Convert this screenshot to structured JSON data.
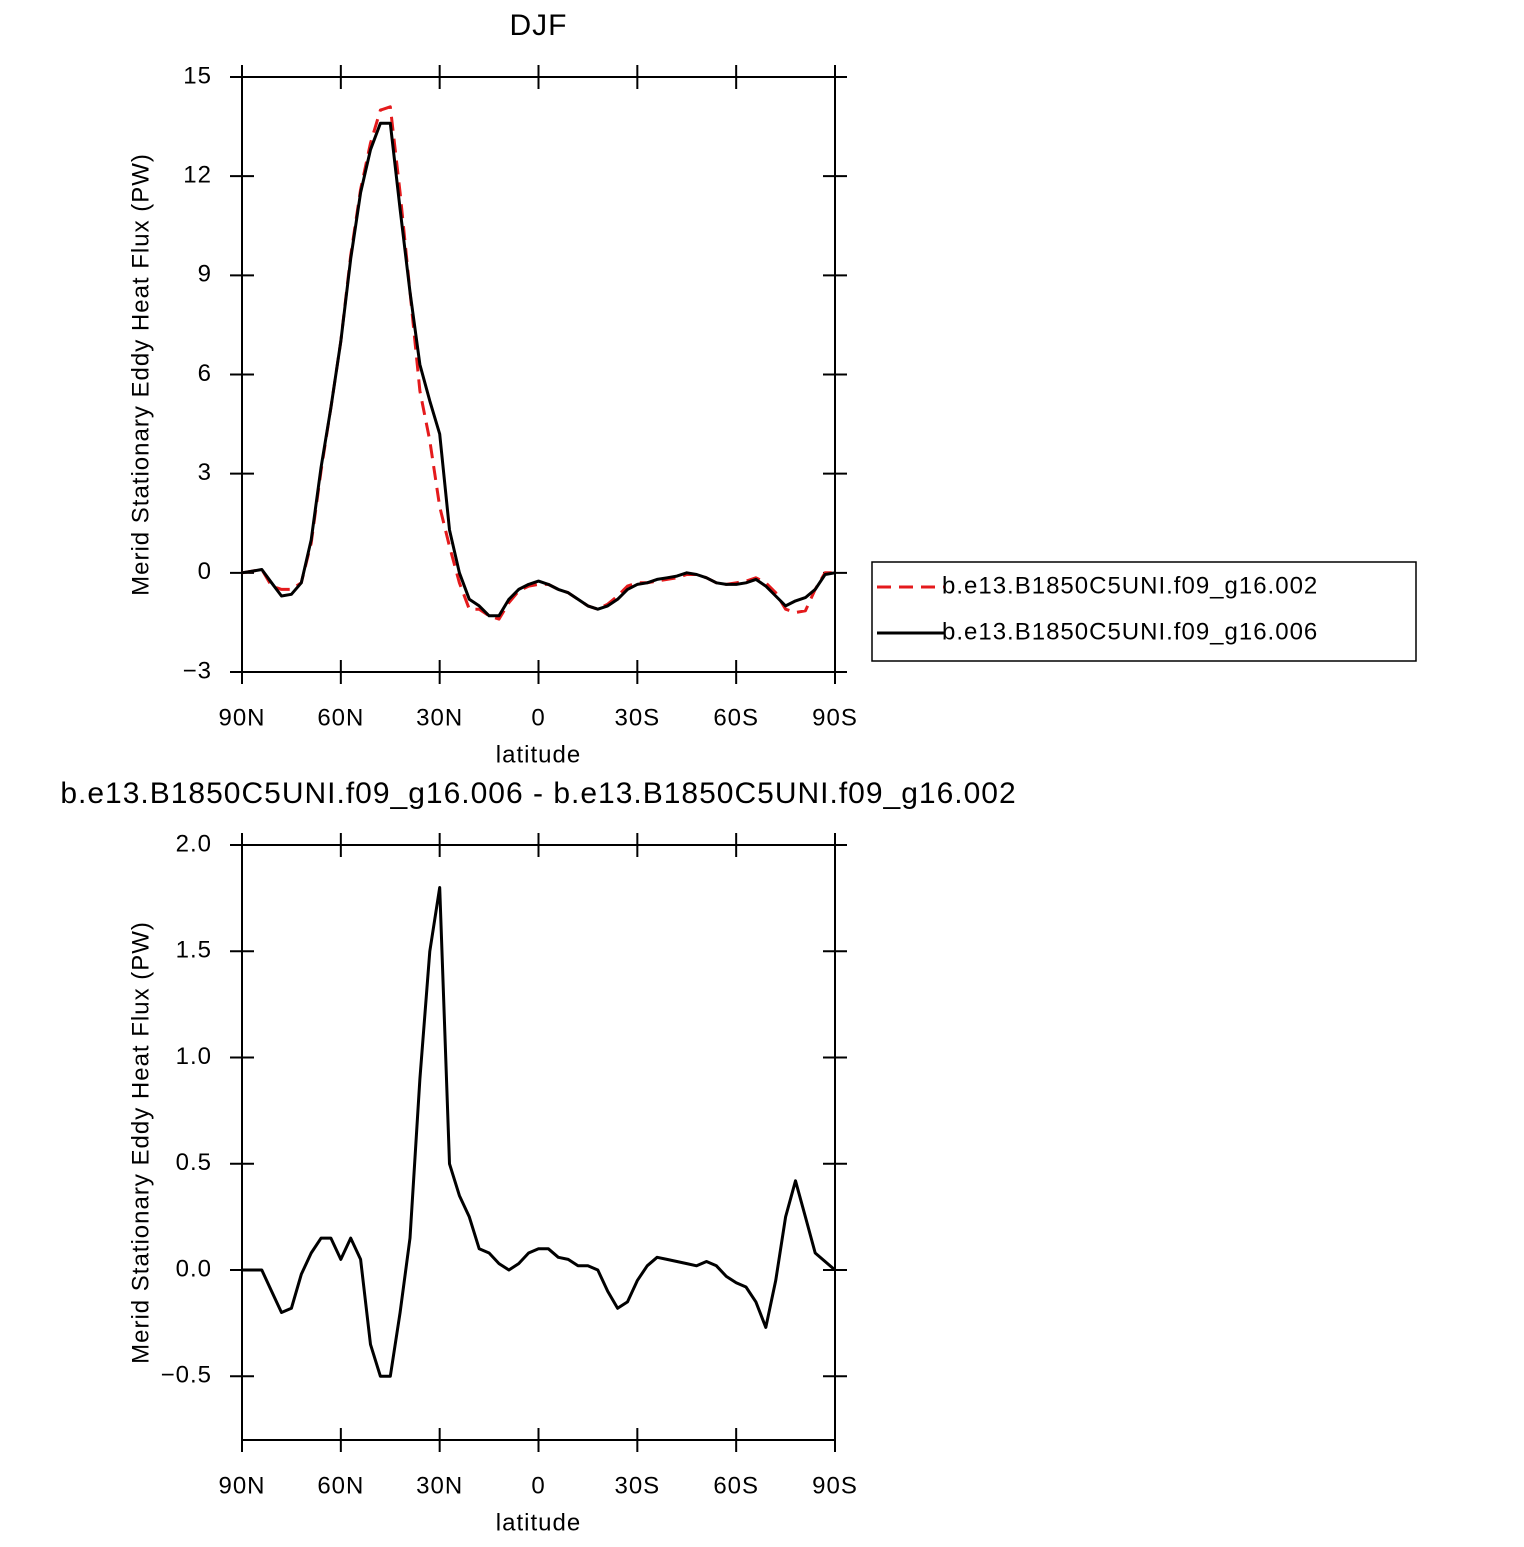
{
  "chart_data": [
    {
      "type": "line",
      "title": "DJF",
      "xlabel": "latitude",
      "ylabel": "Merid Stationary Eddy Heat Flux (PW)",
      "x": [
        90,
        87,
        84,
        81,
        78,
        75,
        72,
        69,
        66,
        63,
        60,
        57,
        54,
        51,
        48,
        45,
        42,
        39,
        36,
        33,
        30,
        27,
        24,
        21,
        18,
        15,
        12,
        9,
        6,
        3,
        0,
        -3,
        -6,
        -9,
        -12,
        -15,
        -18,
        -21,
        -24,
        -27,
        -30,
        -33,
        -36,
        -39,
        -42,
        -45,
        -48,
        -51,
        -54,
        -57,
        -60,
        -63,
        -66,
        -69,
        -72,
        -75,
        -78,
        -81,
        -84,
        -87,
        -90
      ],
      "series": [
        {
          "name": "b.e13.B1850C5UNI.f09_g16.002",
          "color": "#e41a1c",
          "line_style": "dashed",
          "values": [
            0,
            0.05,
            0.1,
            -0.4,
            -0.5,
            -0.5,
            -0.3,
            0.9,
            3.1,
            5,
            7,
            9.6,
            11.6,
            13,
            14,
            14.1,
            11.5,
            8.5,
            5.5,
            4,
            2,
            0.8,
            -0.3,
            -1.1,
            -1.1,
            -1.3,
            -1.4,
            -0.9,
            -0.55,
            -0.4,
            -0.35,
            -0.35,
            -0.5,
            -0.6,
            -0.8,
            -1.0,
            -1.1,
            -0.95,
            -0.7,
            -0.4,
            -0.3,
            -0.3,
            -0.25,
            -0.2,
            -0.15,
            -0.05,
            -0.05,
            -0.15,
            -0.3,
            -0.35,
            -0.3,
            -0.25,
            -0.15,
            -0.3,
            -0.6,
            -1.1,
            -1.2,
            -1.15,
            -0.5,
            0,
            0
          ]
        },
        {
          "name": "b.e13.B1850C5UNI.f09_g16.006",
          "color": "#000000",
          "line_style": "solid",
          "values": [
            0,
            0.05,
            0.1,
            -0.3,
            -0.7,
            -0.65,
            -0.3,
            1,
            3.2,
            5,
            7,
            9.5,
            11.5,
            12.8,
            13.6,
            13.6,
            11,
            8.5,
            6.3,
            5.2,
            4.2,
            1.3,
            0,
            -0.8,
            -1.0,
            -1.3,
            -1.3,
            -0.8,
            -0.5,
            -0.35,
            -0.25,
            -0.35,
            -0.5,
            -0.6,
            -0.8,
            -1.0,
            -1.1,
            -1.0,
            -0.8,
            -0.5,
            -0.35,
            -0.3,
            -0.2,
            -0.15,
            -0.1,
            0,
            -0.05,
            -0.15,
            -0.3,
            -0.35,
            -0.35,
            -0.3,
            -0.2,
            -0.4,
            -0.7,
            -1.0,
            -0.85,
            -0.75,
            -0.5,
            -0.05,
            0
          ]
        }
      ],
      "xlim": [
        90,
        -90
      ],
      "xticks": [
        {
          "value": 90,
          "label": "90N"
        },
        {
          "value": 60,
          "label": "60N"
        },
        {
          "value": 30,
          "label": "30N"
        },
        0,
        {
          "value": -30,
          "label": "30S"
        },
        {
          "value": -60,
          "label": "60S"
        },
        {
          "value": -90,
          "label": "90S"
        }
      ],
      "ylim": [
        -3,
        15
      ],
      "yticks": [
        {
          "value": -3,
          "label": "−3"
        },
        0,
        3,
        6,
        9,
        12,
        15
      ],
      "legend": "right"
    },
    {
      "type": "line",
      "title": "b.e13.B1850C5UNI.f09_g16.006 - b.e13.B1850C5UNI.f09_g16.002",
      "xlabel": "latitude",
      "ylabel": "Merid Stationary Eddy Heat Flux (PW)",
      "x": [
        90,
        87,
        84,
        81,
        78,
        75,
        72,
        69,
        66,
        63,
        60,
        57,
        54,
        51,
        48,
        45,
        42,
        39,
        36,
        33,
        30,
        27,
        24,
        21,
        18,
        15,
        12,
        9,
        6,
        3,
        0,
        -3,
        -6,
        -9,
        -12,
        -15,
        -18,
        -21,
        -24,
        -27,
        -30,
        -33,
        -36,
        -39,
        -42,
        -45,
        -48,
        -51,
        -54,
        -57,
        -60,
        -63,
        -66,
        -69,
        -72,
        -75,
        -78,
        -81,
        -84,
        -87,
        -90
      ],
      "color": "#000000",
      "values": [
        0,
        0,
        0,
        -0.1,
        -0.2,
        -0.18,
        -0.02,
        0.08,
        0.15,
        0.15,
        0.05,
        0.15,
        0.05,
        -0.35,
        -0.5,
        -0.5,
        -0.2,
        0.15,
        0.9,
        1.5,
        1.8,
        0.5,
        0.35,
        0.25,
        0.1,
        0.08,
        0.03,
        0,
        0.03,
        0.08,
        0.1,
        0.1,
        0.06,
        0.05,
        0.02,
        0.02,
        0,
        -0.1,
        -0.18,
        -0.15,
        -0.05,
        0.02,
        0.06,
        0.05,
        0.04,
        0.03,
        0.02,
        0.04,
        0.02,
        -0.03,
        -0.06,
        -0.08,
        -0.15,
        -0.27,
        -0.05,
        0.25,
        0.42,
        0.25,
        0.08,
        0.04,
        0
      ],
      "xlim": [
        90,
        -90
      ],
      "xticks": [
        {
          "value": 90,
          "label": "90N"
        },
        {
          "value": 60,
          "label": "60N"
        },
        {
          "value": 30,
          "label": "30N"
        },
        0,
        {
          "value": -30,
          "label": "30S"
        },
        {
          "value": -60,
          "label": "60S"
        },
        {
          "value": -90,
          "label": "90S"
        }
      ],
      "ylim": [
        -0.8,
        2.0
      ],
      "yticks": [
        {
          "value": -0.5,
          "label": "−0.5"
        },
        {
          "value": 0,
          "label": "0.0"
        },
        {
          "value": 0.5,
          "label": "0.5"
        },
        {
          "value": 1,
          "label": "1.0"
        },
        {
          "value": 1.5,
          "label": "1.5"
        },
        {
          "value": 2,
          "label": "2.0"
        }
      ]
    }
  ]
}
